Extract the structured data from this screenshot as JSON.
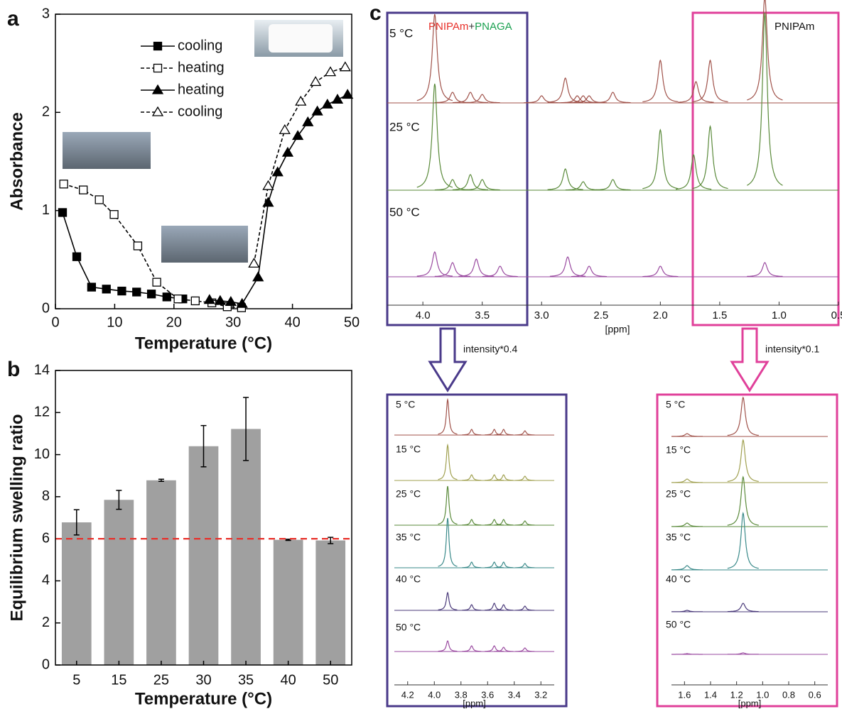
{
  "chart_data": [
    {
      "type": "line",
      "panel_label": "a",
      "xlabel": "Temperature (°C)",
      "ylabel": "Absorbance",
      "xlim": [
        0,
        50
      ],
      "ylim": [
        0,
        3
      ],
      "xticks": [
        0,
        10,
        20,
        30,
        40,
        50
      ],
      "yticks": [
        0,
        1,
        2,
        3
      ],
      "series": [
        {
          "name": "cooling",
          "color": "#000000",
          "marker": "square",
          "dashed": false,
          "x": [
            1.2,
            3.6,
            6.1,
            8.6,
            11.2,
            13.7,
            16.2,
            18.8,
            21.5
          ],
          "values": [
            0.98,
            0.53,
            0.22,
            0.2,
            0.18,
            0.17,
            0.15,
            0.12,
            0.1
          ]
        },
        {
          "name": "heating",
          "color": "#000000",
          "marker": "open-square",
          "dashed": true,
          "x": [
            1.4,
            4.7,
            7.4,
            9.9,
            13.9,
            17.1,
            20.7,
            23.6,
            26.4,
            29,
            31.4
          ],
          "values": [
            1.27,
            1.21,
            1.11,
            0.96,
            0.64,
            0.27,
            0.1,
            0.08,
            0.06,
            0.02,
            0.01
          ]
        },
        {
          "name": "heating",
          "color": "#000000",
          "marker": "triangle",
          "dashed": false,
          "x": [
            26,
            27.8,
            29.6,
            31.5,
            34.2,
            35.9,
            37.5,
            39.2,
            40.9,
            42.6,
            44.2,
            45.9,
            47.6,
            49.3
          ],
          "values": [
            0.09,
            0.08,
            0.07,
            0.05,
            0.32,
            1.08,
            1.39,
            1.59,
            1.76,
            1.9,
            2.01,
            2.08,
            2.13,
            2.18
          ]
        },
        {
          "name": "cooling",
          "color": "#000000",
          "marker": "open-triangle",
          "dashed": true,
          "x": [
            33.5,
            35.9,
            38.7,
            41.4,
            43.9,
            46.4,
            48.9
          ],
          "values": [
            0.46,
            1.25,
            1.82,
            2.11,
            2.31,
            2.41,
            2.46
          ]
        }
      ]
    },
    {
      "type": "bar",
      "panel_label": "b",
      "xlabel": "Temperature (°C)",
      "ylabel": "Equilibrium swelling ratio",
      "categories": [
        "5",
        "15",
        "25",
        "30",
        "35",
        "40",
        "50"
      ],
      "values": [
        6.78,
        7.85,
        8.78,
        10.4,
        11.22,
        5.95,
        5.92
      ],
      "errors": [
        0.6,
        0.45,
        0.05,
        0.98,
        1.5,
        0.03,
        0.15
      ],
      "color": "#a0a0a0",
      "ylim": [
        0,
        14
      ],
      "yticks": [
        0,
        2,
        4,
        6,
        8,
        10,
        12,
        14
      ],
      "reference_line": {
        "value": 6,
        "color": "#e8302a"
      }
    },
    {
      "type": "spectrum",
      "panel_label": "c",
      "xlabel": "[ppm]",
      "xlim": [
        4.3,
        0.5
      ],
      "xticks": [
        {
          "value": 4,
          "label": "4.0"
        },
        3.5,
        {
          "value": 3,
          "label": "3.0"
        },
        2.5,
        {
          "value": 2,
          "label": "2.0"
        },
        1.5,
        {
          "value": 1,
          "label": "1.0"
        },
        0.5
      ],
      "annotations": [
        {
          "text": "PNIPAm",
          "color": "#e8302a"
        },
        {
          "text": "+",
          "color": "#333333"
        },
        {
          "text": "PNAGA",
          "color": "#1aa050"
        },
        {
          "text": "PNIPAm",
          "color": "#e8302a"
        }
      ],
      "series": [
        {
          "name": "5 °C",
          "color": "#a0524a",
          "x": [
            3.9,
            3.75,
            3.6,
            3.5,
            3.0,
            2.8,
            2.7,
            2.65,
            2.6,
            2.4,
            2.0,
            1.7,
            1.58,
            1.12
          ],
          "values": [
            125,
            15,
            15,
            12,
            10,
            35,
            10,
            10,
            10,
            15,
            60,
            30,
            60,
            150
          ]
        },
        {
          "name": "25 °C",
          "color": "#5a8a3a",
          "x": [
            3.9,
            3.75,
            3.6,
            3.5,
            2.8,
            2.65,
            2.4,
            2.0,
            1.72,
            1.58,
            1.12
          ],
          "values": [
            150,
            15,
            22,
            15,
            30,
            12,
            15,
            85,
            50,
            90,
            250
          ]
        },
        {
          "name": "50 °C",
          "color": "#9a4aa0",
          "x": [
            3.9,
            3.75,
            3.55,
            3.35,
            2.78,
            2.6,
            2.0,
            1.12
          ],
          "values": [
            35,
            20,
            25,
            15,
            28,
            15,
            15,
            20
          ]
        }
      ]
    },
    {
      "type": "spectrum",
      "xlabel": "[ppm]",
      "annotation": "intensity*0.4",
      "xlim": [
        4.3,
        3.1
      ],
      "xticks": [
        4.2,
        {
          "value": 4,
          "label": "4.0"
        },
        3.8,
        3.6,
        3.4,
        3.2
      ],
      "series": [
        {
          "name": "5 °C",
          "color": "#a0524a",
          "x": [
            3.9,
            3.72,
            3.55,
            3.48,
            3.32
          ],
          "values": [
            50,
            8,
            8,
            8,
            6
          ]
        },
        {
          "name": "15 °C",
          "color": "#a0a050",
          "x": [
            3.9,
            3.72,
            3.55,
            3.48,
            3.32
          ],
          "values": [
            50,
            8,
            8,
            8,
            6
          ]
        },
        {
          "name": "25 °C",
          "color": "#5a8a3a",
          "x": [
            3.9,
            3.72,
            3.55,
            3.48,
            3.32
          ],
          "values": [
            55,
            8,
            8,
            8,
            6
          ]
        },
        {
          "name": "35 °C",
          "color": "#3a8a8a",
          "x": [
            3.9,
            3.72,
            3.55,
            3.48,
            3.32
          ],
          "values": [
            70,
            8,
            8,
            8,
            6
          ]
        },
        {
          "name": "40 °C",
          "color": "#4a3a7a",
          "x": [
            3.9,
            3.72,
            3.55,
            3.48,
            3.32
          ],
          "values": [
            25,
            8,
            10,
            8,
            6
          ]
        },
        {
          "name": "50 °C",
          "color": "#9a4aa0",
          "x": [
            3.9,
            3.72,
            3.55,
            3.48,
            3.32
          ],
          "values": [
            15,
            8,
            8,
            6,
            5
          ]
        }
      ]
    },
    {
      "type": "spectrum",
      "xlabel": "[ppm]",
      "annotation": "intensity*0.1",
      "xlim": [
        1.7,
        0.5
      ],
      "xticks": [
        1.6,
        1.4,
        1.2,
        {
          "value": 1,
          "label": "1.0"
        },
        0.8,
        0.6
      ],
      "series": [
        {
          "name": "5 °C",
          "color": "#a0524a",
          "x": [
            1.58,
            1.15
          ],
          "values": [
            4,
            55
          ]
        },
        {
          "name": "15 °C",
          "color": "#a0a050",
          "x": [
            1.58,
            1.15
          ],
          "values": [
            5,
            60
          ]
        },
        {
          "name": "25 °C",
          "color": "#5a8a3a",
          "x": [
            1.58,
            1.15
          ],
          "values": [
            5,
            70
          ]
        },
        {
          "name": "35 °C",
          "color": "#3a8a8a",
          "x": [
            1.58,
            1.15
          ],
          "values": [
            6,
            80
          ]
        },
        {
          "name": "40 °C",
          "color": "#4a3a7a",
          "x": [
            1.58,
            1.15
          ],
          "values": [
            2,
            12
          ]
        },
        {
          "name": "50 °C",
          "color": "#9a4aa0",
          "x": [
            1.58,
            1.15
          ],
          "values": [
            1,
            2
          ]
        }
      ]
    }
  ]
}
